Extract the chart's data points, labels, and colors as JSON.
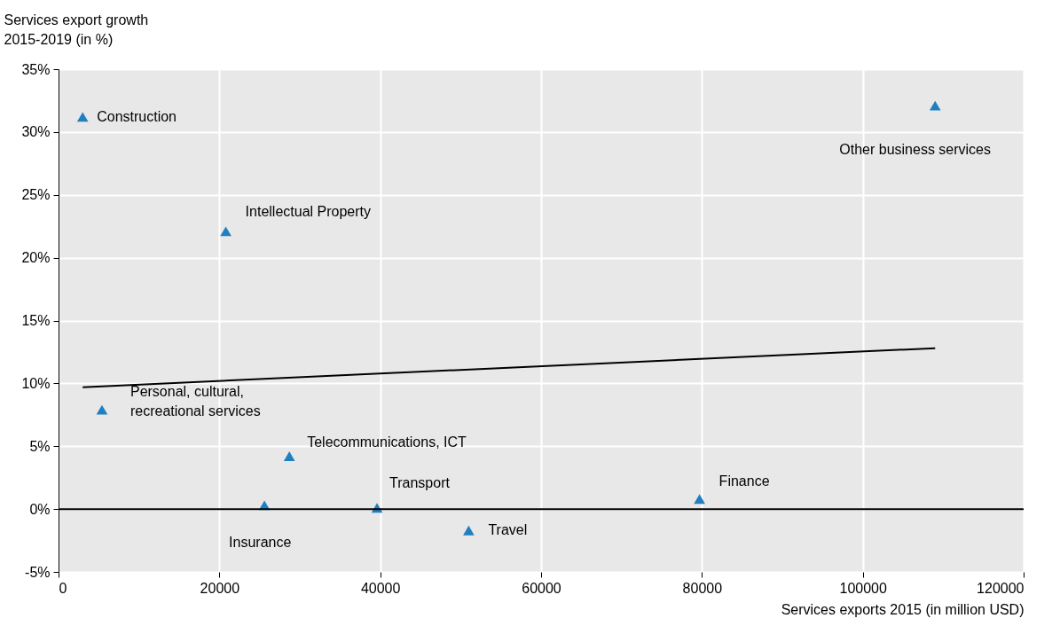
{
  "chart_data": {
    "type": "scatter",
    "xlabel": "Services exports 2015 (in million USD)",
    "ylabel": "Services export growth\n2015-2019 (in %)",
    "xlim": [
      0,
      120000
    ],
    "xticks": [
      0,
      20000,
      40000,
      60000,
      80000,
      100000,
      120000
    ],
    "ylim": [
      -5,
      35
    ],
    "yticks": [
      {
        "value": -5,
        "label": "-5%"
      },
      {
        "value": 0,
        "label": "0%"
      },
      {
        "value": 5,
        "label": "5%"
      },
      {
        "value": 10,
        "label": "10%"
      },
      {
        "value": 15,
        "label": "15%"
      },
      {
        "value": 20,
        "label": "20%"
      },
      {
        "value": 25,
        "label": "25%"
      },
      {
        "value": 30,
        "label": "30%"
      },
      {
        "value": 35,
        "label": "35%"
      }
    ],
    "grid": true,
    "series": [
      {
        "color": "#1f7fc0",
        "marker": "triangle",
        "x": [
          3000,
          20800,
          109000,
          5400,
          28700,
          25600,
          39600,
          51000,
          79700
        ],
        "values": [
          31.2,
          22.1,
          32.1,
          7.9,
          4.2,
          0.3,
          0.1,
          -1.7,
          0.8
        ]
      },
      {
        "type": "line",
        "color": "#000000",
        "x": [
          3000,
          109000
        ],
        "values": [
          9.7,
          12.8
        ]
      }
    ],
    "ref_lines": [
      {
        "axis": "y",
        "value": 0,
        "color": "#000000"
      }
    ],
    "annotations": [
      {
        "text": "Construction",
        "x": 3000,
        "y": 31.2
      },
      {
        "text": "Intellectual Property",
        "x": 20800,
        "y": 22.1
      },
      {
        "text": "Other business services",
        "x": 109000,
        "y": 32.1
      },
      {
        "text": "Personal, cultural,\nrecreational services",
        "x": 5400,
        "y": 7.9
      },
      {
        "text": "Telecommunications, ICT",
        "x": 28700,
        "y": 4.2
      },
      {
        "text": "Insurance",
        "x": 25600,
        "y": 0.3
      },
      {
        "text": "Transport",
        "x": 39600,
        "y": 0.1
      },
      {
        "text": "Travel",
        "x": 51000,
        "y": -1.7
      },
      {
        "text": "Finance",
        "x": 79700,
        "y": 0.8
      }
    ]
  }
}
